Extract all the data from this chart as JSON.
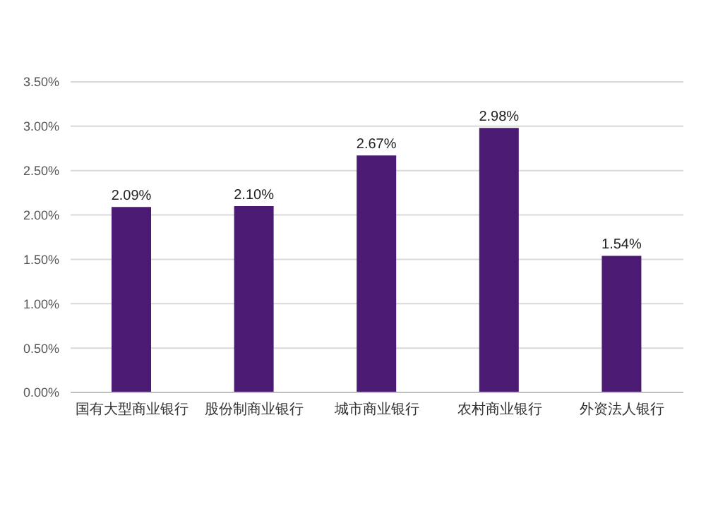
{
  "chart_data": {
    "type": "bar",
    "categories": [
      "国有大型商业银行",
      "股份制商业银行",
      "城市商业银行",
      "农村商业银行",
      "外资法人银行"
    ],
    "values": [
      2.09,
      2.1,
      2.67,
      2.98,
      1.54
    ],
    "value_labels": [
      "2.09%",
      "2.10%",
      "2.67%",
      "2.98%",
      "1.54%"
    ],
    "color": "#4b1a72",
    "ylim": [
      0,
      3.5
    ],
    "yticks": [
      {
        "value": 0,
        "label": "0.00%"
      },
      {
        "value": 0.5,
        "label": "0.50%"
      },
      {
        "value": 1,
        "label": "1.00%"
      },
      {
        "value": 1.5,
        "label": "1.50%"
      },
      {
        "value": 2,
        "label": "2.00%"
      },
      {
        "value": 2.5,
        "label": "2.50%"
      },
      {
        "value": 3,
        "label": "3.00%"
      },
      {
        "value": 3.5,
        "label": "3.50%"
      }
    ],
    "grid": "y"
  }
}
